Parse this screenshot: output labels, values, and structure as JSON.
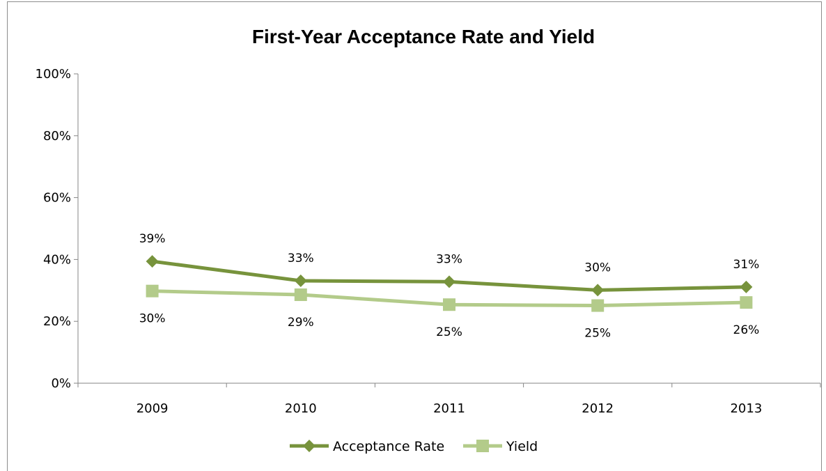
{
  "chart_data": {
    "type": "line",
    "title": "First-Year Acceptance Rate and Yield",
    "categories": [
      "2009",
      "2010",
      "2011",
      "2012",
      "2013"
    ],
    "ylim": [
      0,
      100
    ],
    "yticks": [
      "0%",
      "20%",
      "40%",
      "60%",
      "80%",
      "100%"
    ],
    "grid": false,
    "legend_position": "bottom",
    "series": [
      {
        "name": "Acceptance Rate",
        "values": [
          39.4,
          33.1,
          32.8,
          30.1,
          31.1
        ],
        "labels": [
          "39%",
          "33%",
          "33%",
          "30%",
          "31%"
        ],
        "color": "#77933c",
        "marker": "diamond",
        "label_position": "above"
      },
      {
        "name": "Yield",
        "values": [
          29.8,
          28.6,
          25.4,
          25.1,
          26.1
        ],
        "labels": [
          "30%",
          "29%",
          "25%",
          "25%",
          "26%"
        ],
        "color": "#b3cb8a",
        "marker": "square",
        "label_position": "below"
      }
    ]
  }
}
